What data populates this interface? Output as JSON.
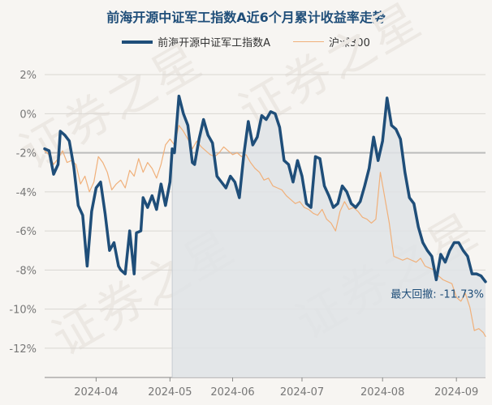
{
  "chart_data": {
    "type": "line",
    "title": "前海开源中证军工指数A近6个月累计收益率走势",
    "ylim": [
      -13.5,
      2.5
    ],
    "yticks": [
      2,
      0,
      -2,
      -4,
      -6,
      -8,
      -10,
      -12
    ],
    "ytick_labels": [
      "2%",
      "0%",
      "-2%",
      "-4%",
      "-6%",
      "-8%",
      "-10%",
      "-12%"
    ],
    "xlim": [
      0,
      197
    ],
    "xticks": [
      {
        "pos": 23,
        "label": "2024-04"
      },
      {
        "pos": 56,
        "label": "2024-05"
      },
      {
        "pos": 84,
        "label": "2024-06"
      },
      {
        "pos": 115,
        "label": "2024-07"
      },
      {
        "pos": 151,
        "label": "2024-08"
      },
      {
        "pos": 184,
        "label": "2024-09"
      }
    ],
    "grid": true,
    "legend_position": "top",
    "drawdown": {
      "label": "最大回撤: -11.73%",
      "start_x": 57,
      "end_x": 197,
      "baseline": -2
    },
    "colors": {
      "main": "#1f4e79",
      "hs300": "#f0b07a",
      "shade": "#dfe3e6",
      "watermark": "#ece8e3"
    },
    "series": [
      {
        "name": "前海开源中证军工指数A",
        "color": "#1f4e79",
        "x": [
          0,
          2,
          4,
          6,
          7,
          9,
          11,
          13,
          15,
          17,
          19,
          21,
          23,
          25,
          27,
          29,
          31,
          33,
          34,
          36,
          38,
          40,
          41,
          43,
          44,
          46,
          48,
          50,
          52,
          54,
          56,
          57,
          58,
          60,
          62,
          64,
          66,
          67,
          69,
          71,
          73,
          75,
          77,
          79,
          81,
          83,
          85,
          87,
          89,
          91,
          93,
          95,
          97,
          99,
          101,
          103,
          105,
          107,
          109,
          111,
          113,
          115,
          117,
          119,
          121,
          123,
          125,
          127,
          129,
          131,
          133,
          135,
          137,
          139,
          141,
          143,
          145,
          147,
          149,
          151,
          153,
          155,
          157,
          159,
          161,
          163,
          165,
          167,
          169,
          171,
          173,
          175,
          177,
          179,
          181,
          183,
          185,
          187,
          189,
          191,
          193,
          195,
          197
        ],
        "y": [
          -1.8,
          -1.9,
          -3.1,
          -2.6,
          -0.9,
          -1.1,
          -1.4,
          -2.7,
          -4.7,
          -5.2,
          -7.8,
          -5.0,
          -3.8,
          -3.5,
          -5.1,
          -7.0,
          -6.6,
          -7.8,
          -8.0,
          -8.2,
          -6.0,
          -8.2,
          -6.1,
          -6.0,
          -4.3,
          -4.8,
          -4.2,
          -4.9,
          -3.6,
          -4.7,
          -3.5,
          -1.8,
          -2.0,
          0.9,
          0.0,
          -0.6,
          -2.5,
          -2.6,
          -1.3,
          -0.3,
          -1.1,
          -1.5,
          -3.2,
          -3.5,
          -3.8,
          -3.2,
          -3.5,
          -4.3,
          -2.1,
          -0.4,
          -1.6,
          -1.2,
          -0.1,
          -0.3,
          0.1,
          0.0,
          -0.7,
          -2.4,
          -2.6,
          -3.5,
          -2.4,
          -3.2,
          -4.6,
          -4.8,
          -2.2,
          -2.3,
          -3.7,
          -4.2,
          -4.8,
          -4.6,
          -3.7,
          -4.0,
          -4.6,
          -4.8,
          -4.5,
          -3.7,
          -2.8,
          -1.2,
          -2.4,
          -1.4,
          0.8,
          -0.6,
          -0.8,
          -1.3,
          -3.0,
          -4.3,
          -4.6,
          -5.8,
          -6.6,
          -7.0,
          -7.3,
          -8.5,
          -7.2,
          -7.6,
          -7.0,
          -6.6,
          -6.6,
          -7.0,
          -7.3,
          -8.2,
          -8.2,
          -8.3,
          -8.6
        ]
      },
      {
        "name": "沪深300",
        "color": "#f0b07a",
        "x": [
          0,
          2,
          4,
          6,
          8,
          10,
          12,
          14,
          16,
          18,
          20,
          22,
          24,
          26,
          28,
          30,
          32,
          34,
          36,
          38,
          40,
          42,
          44,
          46,
          48,
          50,
          52,
          54,
          56,
          58,
          60,
          62,
          64,
          66,
          68,
          70,
          72,
          74,
          76,
          78,
          80,
          82,
          84,
          86,
          88,
          90,
          92,
          94,
          96,
          98,
          100,
          102,
          104,
          106,
          108,
          110,
          112,
          114,
          116,
          118,
          120,
          122,
          124,
          126,
          128,
          130,
          132,
          134,
          136,
          138,
          140,
          142,
          144,
          146,
          148,
          150,
          152,
          154,
          156,
          158,
          160,
          162,
          164,
          166,
          168,
          170,
          172,
          174,
          176,
          178,
          180,
          182,
          184,
          186,
          188,
          190,
          192,
          194,
          196,
          197
        ],
        "y": [
          -1.9,
          -2.1,
          -2.6,
          -2.3,
          -1.9,
          -2.5,
          -2.4,
          -2.6,
          -3.6,
          -3.2,
          -4.0,
          -3.5,
          -2.2,
          -2.5,
          -3.0,
          -3.9,
          -3.6,
          -3.4,
          -3.8,
          -2.9,
          -3.2,
          -2.3,
          -3.0,
          -2.5,
          -2.8,
          -3.3,
          -2.6,
          -1.6,
          -1.3,
          -1.6,
          -0.6,
          -0.9,
          -1.3,
          -1.8,
          -1.4,
          -1.7,
          -1.9,
          -2.1,
          -2.2,
          -2.0,
          -1.7,
          -1.9,
          -2.1,
          -2.0,
          -2.2,
          -2.1,
          -2.5,
          -2.8,
          -3.0,
          -3.4,
          -3.3,
          -3.7,
          -3.8,
          -3.9,
          -4.2,
          -4.4,
          -4.6,
          -4.5,
          -4.8,
          -4.9,
          -5.1,
          -5.2,
          -4.9,
          -5.4,
          -5.6,
          -6.0,
          -5.0,
          -4.5,
          -4.9,
          -4.8,
          -5.0,
          -5.3,
          -5.4,
          -5.6,
          -5.4,
          -3.0,
          -4.3,
          -5.6,
          -7.3,
          -7.4,
          -7.5,
          -7.4,
          -7.5,
          -7.6,
          -7.4,
          -7.8,
          -7.9,
          -8.0,
          -8.3,
          -8.5,
          -8.6,
          -8.7,
          -9.4,
          -9.6,
          -9.2,
          -9.9,
          -11.1,
          -11.0,
          -11.2,
          -11.4
        ]
      }
    ]
  }
}
